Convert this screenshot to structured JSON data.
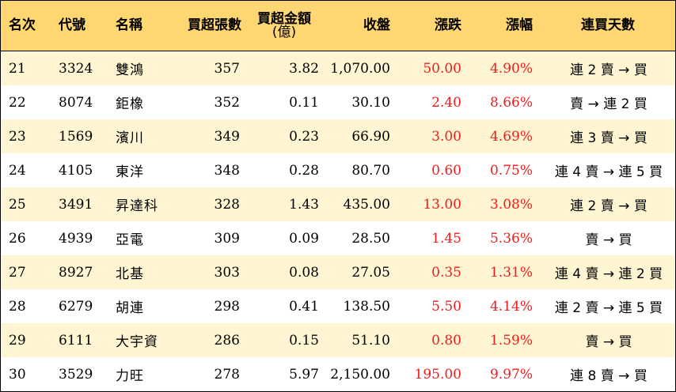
{
  "headers": {
    "rank": "名次",
    "code": "代號",
    "name": "名稱",
    "net_buy_lots": "買超張數",
    "net_buy_amount_line1": "買超金額",
    "net_buy_amount_line2": "(億)",
    "close": "收盤",
    "change": "漲跌",
    "change_pct": "漲幅",
    "consecutive_days": "連買天數"
  },
  "rows": [
    {
      "rank": "21",
      "code": "3324",
      "name": "雙鴻",
      "lots": "357",
      "amount": "3.82",
      "close": "1,070.00",
      "change": "50.00",
      "pct": "4.90%",
      "days": "連 2 賣 → 買"
    },
    {
      "rank": "22",
      "code": "8074",
      "name": "鉅橡",
      "lots": "352",
      "amount": "0.11",
      "close": "30.10",
      "change": "2.40",
      "pct": "8.66%",
      "days": "賣 → 連 2 買"
    },
    {
      "rank": "23",
      "code": "1569",
      "name": "濱川",
      "lots": "349",
      "amount": "0.23",
      "close": "66.90",
      "change": "3.00",
      "pct": "4.69%",
      "days": "連 3 賣 → 買"
    },
    {
      "rank": "24",
      "code": "4105",
      "name": "東洋",
      "lots": "348",
      "amount": "0.28",
      "close": "80.70",
      "change": "0.60",
      "pct": "0.75%",
      "days": "連 4 賣 → 連 5 買"
    },
    {
      "rank": "25",
      "code": "3491",
      "name": "昇達科",
      "lots": "328",
      "amount": "1.43",
      "close": "435.00",
      "change": "13.00",
      "pct": "3.08%",
      "days": "連 2 賣 → 買"
    },
    {
      "rank": "26",
      "code": "4939",
      "name": "亞電",
      "lots": "309",
      "amount": "0.09",
      "close": "28.50",
      "change": "1.45",
      "pct": "5.36%",
      "days": "賣 → 買"
    },
    {
      "rank": "27",
      "code": "8927",
      "name": "北基",
      "lots": "303",
      "amount": "0.08",
      "close": "27.05",
      "change": "0.35",
      "pct": "1.31%",
      "days": "連 4 賣 → 連 2 買"
    },
    {
      "rank": "28",
      "code": "6279",
      "name": "胡連",
      "lots": "298",
      "amount": "0.41",
      "close": "138.50",
      "change": "5.50",
      "pct": "4.14%",
      "days": "連 2 賣 → 連 5 買"
    },
    {
      "rank": "29",
      "code": "6111",
      "name": "大宇資",
      "lots": "286",
      "amount": "0.15",
      "close": "51.10",
      "change": "0.80",
      "pct": "1.59%",
      "days": "賣 → 買"
    },
    {
      "rank": "30",
      "code": "3529",
      "name": "力旺",
      "lots": "278",
      "amount": "5.97",
      "close": "2,150.00",
      "change": "195.00",
      "pct": "9.97%",
      "days": "連 8 賣 → 買"
    }
  ],
  "colors": {
    "header_bg": "#ffd772",
    "odd_row_bg": "#fff5d2",
    "positive": "#ee1c1c"
  }
}
